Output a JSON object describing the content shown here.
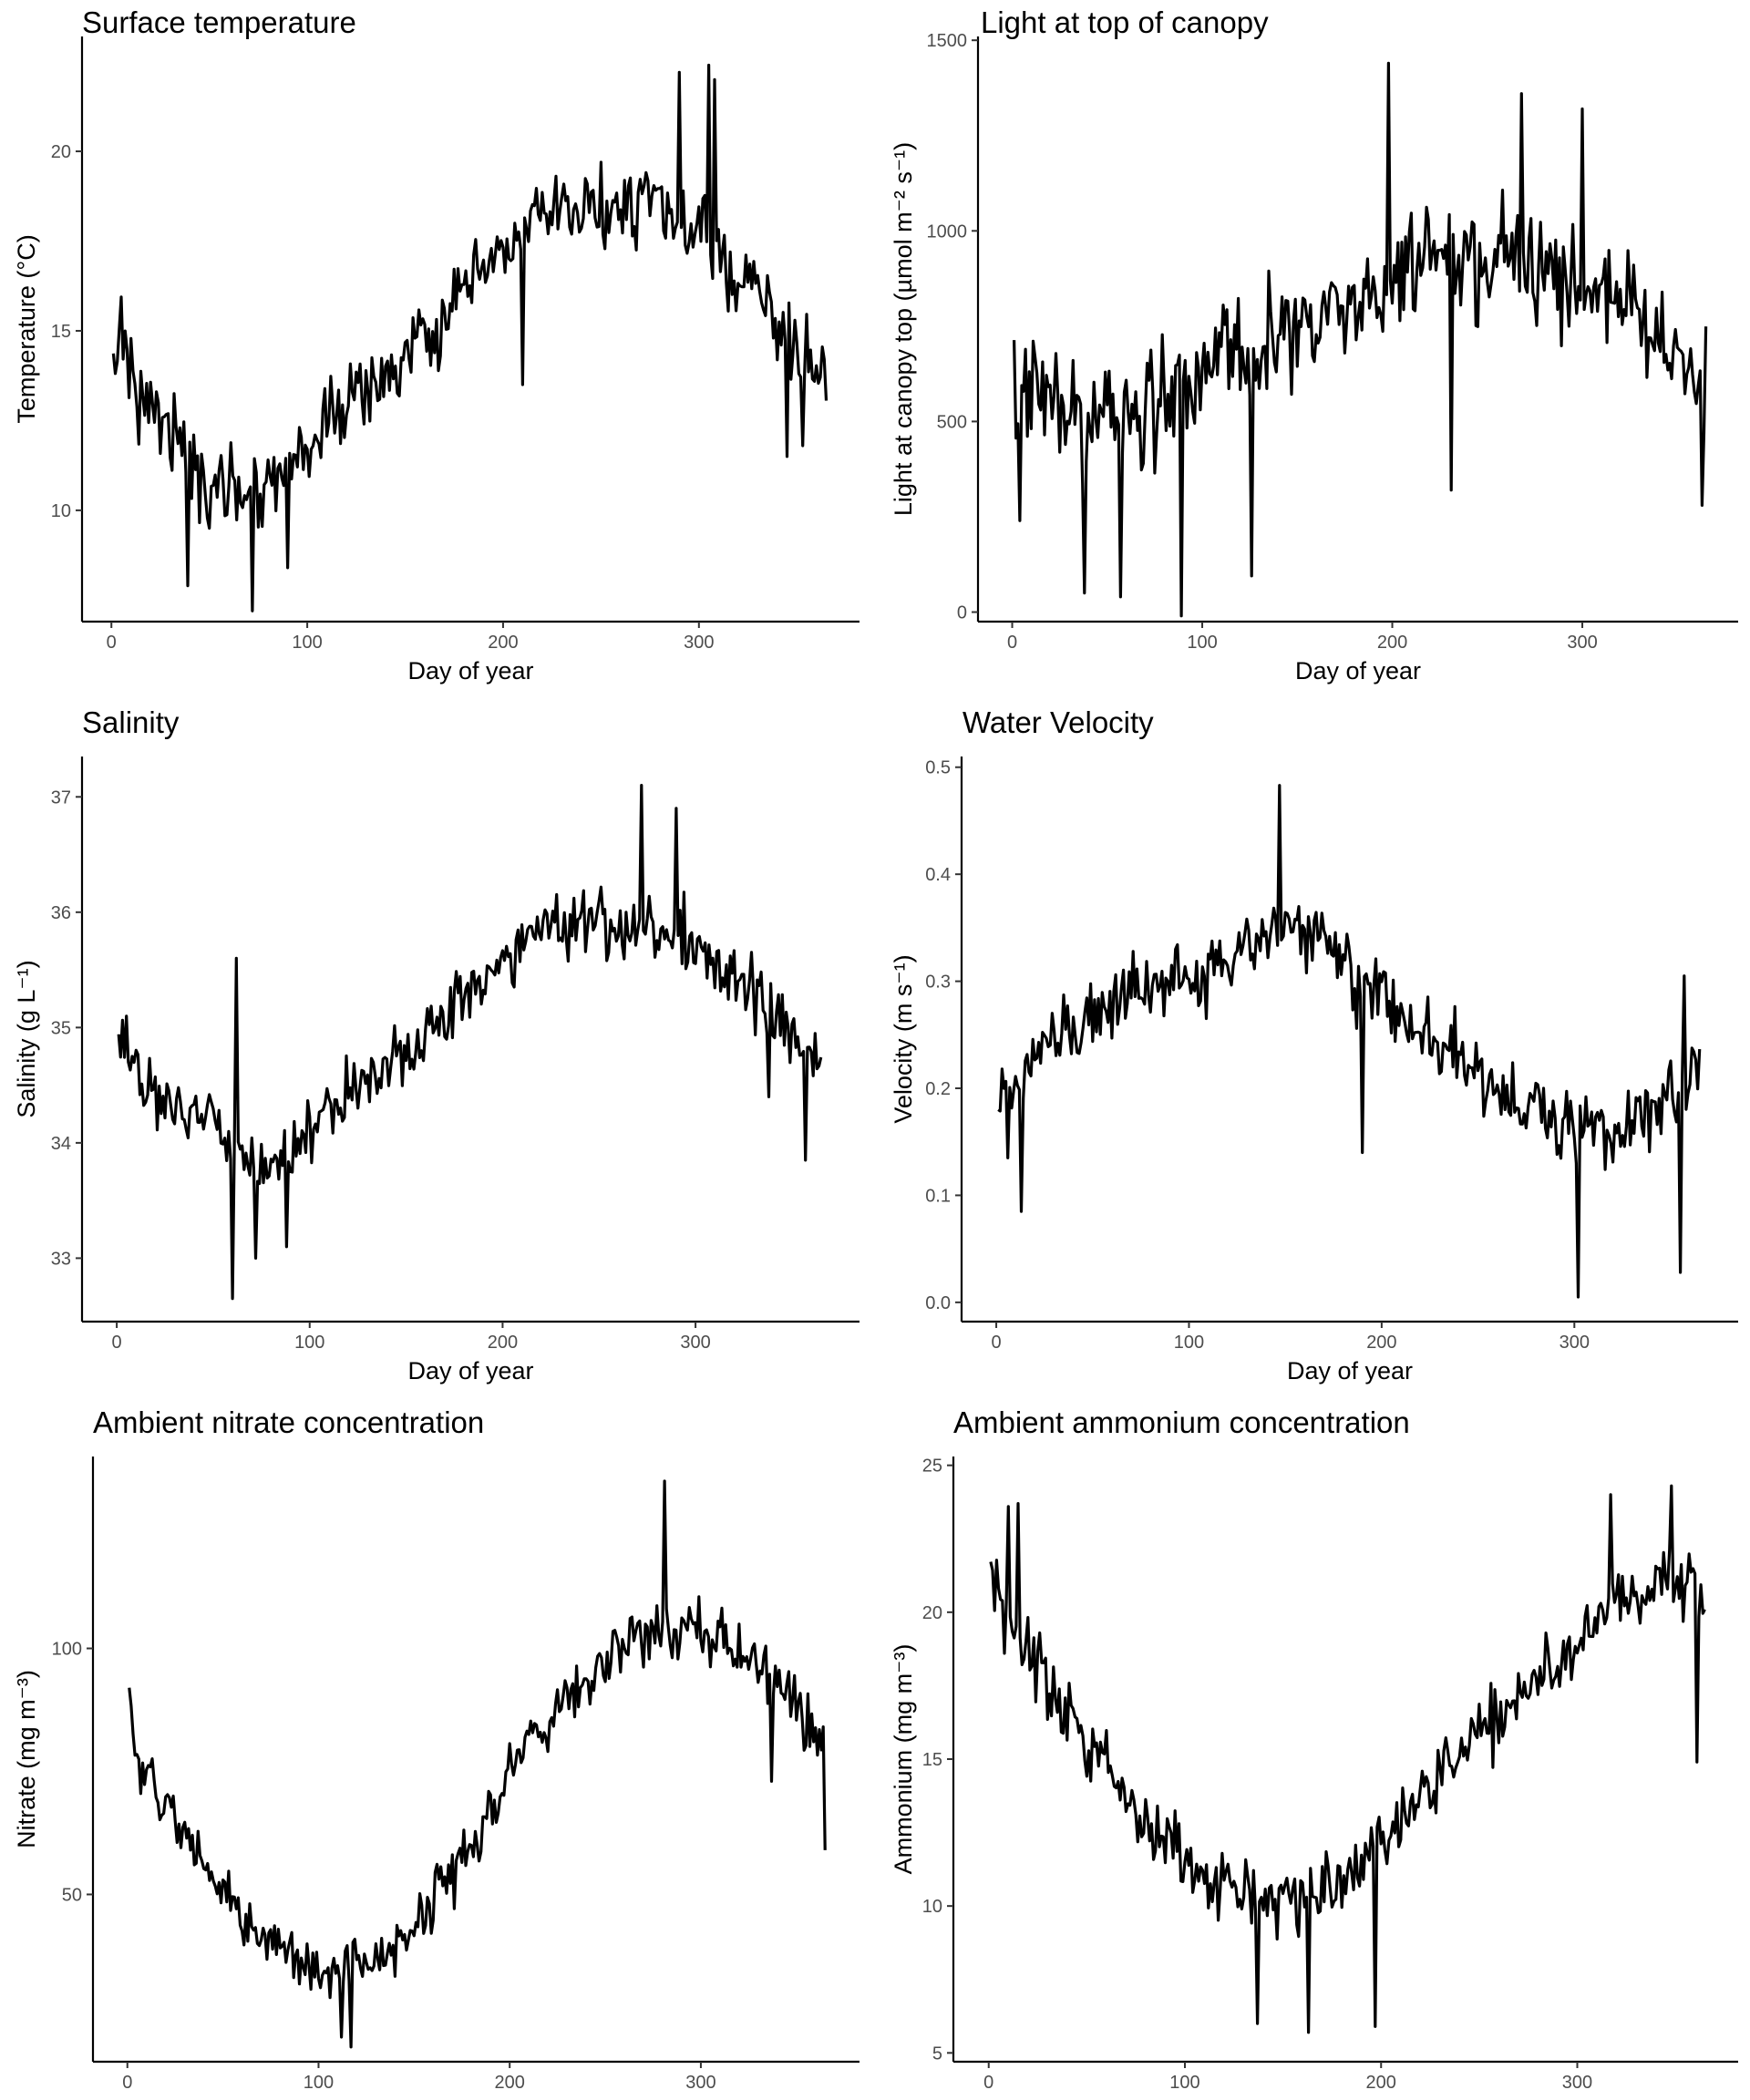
{
  "chart_data": [
    {
      "type": "line",
      "title": "Surface temperature",
      "xlabel": "Day of year",
      "ylabel": "Temperature (°C)",
      "xlim": [
        -15,
        382
      ],
      "ylim": [
        6.9,
        23.2
      ],
      "xticks": [
        0,
        100,
        200,
        300
      ],
      "yticks": [
        10,
        15,
        20
      ],
      "grid": false,
      "legend": "none",
      "line_color": "#000000",
      "keypoints": [
        [
          1,
          13.5
        ],
        [
          5,
          15.5
        ],
        [
          12,
          13.2
        ],
        [
          20,
          13.0
        ],
        [
          30,
          12.5
        ],
        [
          40,
          11.2
        ],
        [
          50,
          10.6
        ],
        [
          60,
          10.8
        ],
        [
          72,
          10.6
        ],
        [
          85,
          11.0
        ],
        [
          100,
          11.8
        ],
        [
          110,
          12.4
        ],
        [
          120,
          13.0
        ],
        [
          135,
          13.5
        ],
        [
          150,
          14.2
        ],
        [
          160,
          14.8
        ],
        [
          170,
          15.2
        ],
        [
          185,
          16.3
        ],
        [
          200,
          17.2
        ],
        [
          215,
          18.0
        ],
        [
          230,
          18.3
        ],
        [
          245,
          18.4
        ],
        [
          255,
          18.4
        ],
        [
          265,
          18.6
        ],
        [
          275,
          18.6
        ],
        [
          285,
          18.2
        ],
        [
          295,
          17.7
        ],
        [
          305,
          17.4
        ],
        [
          315,
          16.8
        ],
        [
          325,
          16.3
        ],
        [
          335,
          15.6
        ],
        [
          345,
          14.9
        ],
        [
          355,
          14.2
        ],
        [
          365,
          13.6
        ]
      ],
      "spread": 1.6,
      "extremes": [
        [
          39,
          7.9
        ],
        [
          50,
          9.5
        ],
        [
          72,
          7.2
        ],
        [
          90,
          8.4
        ],
        [
          210,
          13.5
        ],
        [
          290,
          22.2
        ],
        [
          305,
          22.4
        ],
        [
          308,
          22.0
        ],
        [
          345,
          11.5
        ],
        [
          353,
          11.8
        ]
      ]
    },
    {
      "type": "line",
      "title": "Light at top of canopy",
      "xlabel": "Day of year",
      "ylabel": "Light at canopy top (µmol m⁻² s⁻¹)",
      "xlim": [
        -18,
        382
      ],
      "ylim": [
        -25,
        1510
      ],
      "xticks": [
        0,
        100,
        200,
        300
      ],
      "yticks": [
        0,
        500,
        1000,
        1500
      ],
      "grid": false,
      "legend": "none",
      "line_color": "#000000",
      "keypoints": [
        [
          1,
          560
        ],
        [
          10,
          590
        ],
        [
          25,
          560
        ],
        [
          40,
          520
        ],
        [
          55,
          510
        ],
        [
          70,
          520
        ],
        [
          85,
          560
        ],
        [
          100,
          610
        ],
        [
          115,
          650
        ],
        [
          130,
          690
        ],
        [
          145,
          720
        ],
        [
          160,
          760
        ],
        [
          175,
          800
        ],
        [
          190,
          840
        ],
        [
          205,
          880
        ],
        [
          220,
          900
        ],
        [
          235,
          910
        ],
        [
          250,
          900
        ],
        [
          265,
          900
        ],
        [
          280,
          880
        ],
        [
          295,
          860
        ],
        [
          310,
          830
        ],
        [
          325,
          790
        ],
        [
          340,
          740
        ],
        [
          355,
          680
        ],
        [
          365,
          620
        ]
      ],
      "spread": 230,
      "extremes": [
        [
          4,
          240
        ],
        [
          38,
          50
        ],
        [
          57,
          40
        ],
        [
          89,
          -10
        ],
        [
          126,
          95
        ],
        [
          198,
          1440
        ],
        [
          231,
          320
        ],
        [
          268,
          1360
        ],
        [
          300,
          1320
        ],
        [
          363,
          280
        ]
      ]
    },
    {
      "type": "line",
      "title": "Salinity",
      "xlabel": "Day of year",
      "ylabel": "Salinity (g L⁻¹)",
      "xlim": [
        -18,
        385
      ],
      "ylim": [
        32.45,
        37.35
      ],
      "xticks": [
        0,
        100,
        200,
        300
      ],
      "yticks": [
        33,
        34,
        35,
        36,
        37
      ],
      "grid": false,
      "legend": "none",
      "line_color": "#000000",
      "keypoints": [
        [
          1,
          35.0
        ],
        [
          10,
          34.7
        ],
        [
          25,
          34.3
        ],
        [
          40,
          34.2
        ],
        [
          55,
          34.1
        ],
        [
          65,
          33.9
        ],
        [
          80,
          33.8
        ],
        [
          95,
          34.0
        ],
        [
          110,
          34.3
        ],
        [
          125,
          34.5
        ],
        [
          140,
          34.7
        ],
        [
          155,
          34.9
        ],
        [
          170,
          35.1
        ],
        [
          185,
          35.4
        ],
        [
          200,
          35.6
        ],
        [
          215,
          35.8
        ],
        [
          230,
          35.9
        ],
        [
          245,
          35.95
        ],
        [
          260,
          35.9
        ],
        [
          275,
          35.9
        ],
        [
          290,
          35.8
        ],
        [
          305,
          35.6
        ],
        [
          320,
          35.4
        ],
        [
          335,
          35.2
        ],
        [
          350,
          35.0
        ],
        [
          365,
          34.6
        ]
      ],
      "spread": 0.45,
      "extremes": [
        [
          60,
          32.65
        ],
        [
          62,
          35.6
        ],
        [
          72,
          33.0
        ],
        [
          88,
          33.1
        ],
        [
          272,
          37.1
        ],
        [
          290,
          36.9
        ],
        [
          338,
          34.4
        ],
        [
          357,
          33.85
        ]
      ]
    },
    {
      "type": "line",
      "title": "Water Velocity",
      "xlabel": "Day of year",
      "ylabel": "Velocity (m s⁻¹)",
      "xlim": [
        -18,
        385
      ],
      "ylim": [
        -0.018,
        0.51
      ],
      "xticks": [
        0,
        100,
        200,
        300
      ],
      "yticks": [
        0.0,
        0.1,
        0.2,
        0.3,
        0.4,
        0.5
      ],
      "grid": false,
      "legend": "none",
      "line_color": "#000000",
      "keypoints": [
        [
          1,
          0.2
        ],
        [
          15,
          0.21
        ],
        [
          30,
          0.24
        ],
        [
          50,
          0.27
        ],
        [
          70,
          0.29
        ],
        [
          90,
          0.3
        ],
        [
          110,
          0.31
        ],
        [
          130,
          0.33
        ],
        [
          150,
          0.34
        ],
        [
          165,
          0.35
        ],
        [
          180,
          0.31
        ],
        [
          195,
          0.29
        ],
        [
          210,
          0.27
        ],
        [
          230,
          0.24
        ],
        [
          250,
          0.21
        ],
        [
          270,
          0.19
        ],
        [
          290,
          0.17
        ],
        [
          310,
          0.16
        ],
        [
          330,
          0.17
        ],
        [
          350,
          0.19
        ],
        [
          365,
          0.21
        ]
      ],
      "spread": 0.055,
      "extremes": [
        [
          6,
          0.135
        ],
        [
          13,
          0.085
        ],
        [
          147,
          0.483
        ],
        [
          190,
          0.14
        ],
        [
          302,
          0.005
        ],
        [
          355,
          0.028
        ],
        [
          357,
          0.305
        ]
      ]
    },
    {
      "type": "line",
      "title": "Ambient nitrate concentration",
      "xlabel": "Day of year",
      "ylabel": "Nitrate (mg m⁻³)",
      "xlim": [
        -18,
        383
      ],
      "ylim": [
        16,
        139
      ],
      "xticks": [
        0,
        100,
        200,
        300
      ],
      "yticks": [
        50,
        100
      ],
      "grid": false,
      "legend": "none",
      "line_color": "#000000",
      "keypoints": [
        [
          1,
          91
        ],
        [
          5,
          78
        ],
        [
          15,
          72
        ],
        [
          30,
          62
        ],
        [
          45,
          52
        ],
        [
          60,
          46
        ],
        [
          75,
          40
        ],
        [
          90,
          37
        ],
        [
          105,
          35
        ],
        [
          120,
          35
        ],
        [
          135,
          38
        ],
        [
          150,
          44
        ],
        [
          165,
          52
        ],
        [
          180,
          60
        ],
        [
          195,
          70
        ],
        [
          210,
          80
        ],
        [
          225,
          88
        ],
        [
          240,
          94
        ],
        [
          255,
          99
        ],
        [
          270,
          102
        ],
        [
          285,
          104
        ],
        [
          300,
          104
        ],
        [
          315,
          101
        ],
        [
          330,
          97
        ],
        [
          345,
          91
        ],
        [
          355,
          85
        ],
        [
          365,
          80
        ]
      ],
      "spread": 9,
      "extremes": [
        [
          1,
          92
        ],
        [
          112,
          21
        ],
        [
          117,
          19
        ],
        [
          281,
          134
        ],
        [
          337,
          73
        ],
        [
          365,
          59
        ]
      ]
    },
    {
      "type": "line",
      "title": "Ambient ammonium concentration",
      "xlabel": "Day of year",
      "ylabel": "Ammonium (mg m⁻³)",
      "xlim": [
        -18,
        382
      ],
      "ylim": [
        4.7,
        25.3
      ],
      "xticks": [
        0,
        100,
        200,
        300
      ],
      "yticks": [
        5,
        10,
        15,
        20,
        25
      ],
      "grid": false,
      "legend": "none",
      "line_color": "#000000",
      "keypoints": [
        [
          1,
          21
        ],
        [
          10,
          20
        ],
        [
          20,
          18.5
        ],
        [
          35,
          17
        ],
        [
          50,
          15.5
        ],
        [
          65,
          14
        ],
        [
          80,
          13
        ],
        [
          95,
          12
        ],
        [
          110,
          11.2
        ],
        [
          125,
          10.5
        ],
        [
          140,
          10.3
        ],
        [
          155,
          10.2
        ],
        [
          170,
          10.5
        ],
        [
          185,
          11
        ],
        [
          200,
          12
        ],
        [
          215,
          13.2
        ],
        [
          230,
          14.5
        ],
        [
          245,
          15.5
        ],
        [
          260,
          16.5
        ],
        [
          275,
          17.5
        ],
        [
          290,
          18.5
        ],
        [
          305,
          19.5
        ],
        [
          320,
          20.3
        ],
        [
          335,
          21
        ],
        [
          350,
          21
        ],
        [
          365,
          20.5
        ]
      ],
      "spread": 1.8,
      "extremes": [
        [
          10,
          23.6
        ],
        [
          15,
          23.7
        ],
        [
          137,
          6.0
        ],
        [
          163,
          5.7
        ],
        [
          197,
          5.9
        ],
        [
          317,
          24.0
        ],
        [
          348,
          24.3
        ],
        [
          361,
          14.9
        ]
      ]
    }
  ]
}
